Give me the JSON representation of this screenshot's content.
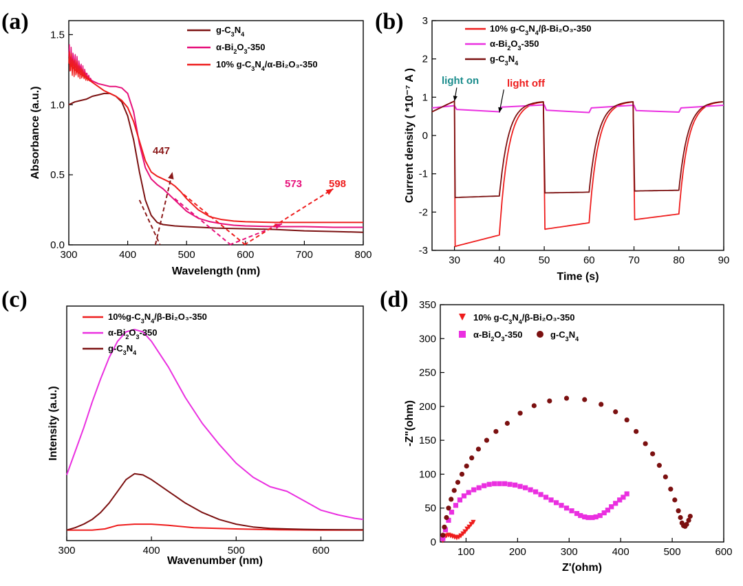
{
  "chart_data": [
    {
      "panel": "(a)",
      "type": "line",
      "xlabel": "Wavelength (nm)",
      "ylabel": "Absorbance (a.u.)",
      "xlim": [
        300,
        800
      ],
      "ylim": [
        0,
        1.6
      ],
      "xticks": [
        300,
        400,
        500,
        600,
        700,
        800
      ],
      "yticks": [
        0.0,
        0.5,
        1.0,
        1.5
      ],
      "ytick_labels": [
        "0.0",
        "0.5",
        "1.0",
        "1.5"
      ],
      "legend": [
        {
          "label": "g-C",
          "s1": "3",
          "mid": "N",
          "s2": "4",
          "tail": "",
          "color": "#7b1010"
        },
        {
          "label": "α-Bi",
          "s1": "2",
          "mid": "O",
          "s2": "3",
          "tail": "-350",
          "color": "#e6107a"
        },
        {
          "label": "10% g-C",
          "s1": "3",
          "mid": "N",
          "s2": "4",
          "tail": "/α-Bi₂O₃-350",
          "color": "#ee1c1c"
        }
      ],
      "series": [
        {
          "name": "g-C3N4",
          "color": "#7b1010",
          "x": [
            300,
            310,
            320,
            330,
            340,
            350,
            360,
            370,
            380,
            390,
            400,
            410,
            420,
            430,
            440,
            450,
            460,
            480,
            500,
            550,
            600,
            650,
            700,
            750,
            800
          ],
          "y": [
            1.0,
            1.02,
            1.03,
            1.04,
            1.06,
            1.07,
            1.08,
            1.08,
            1.06,
            1.02,
            0.92,
            0.75,
            0.52,
            0.32,
            0.21,
            0.16,
            0.145,
            0.135,
            0.13,
            0.12,
            0.115,
            0.11,
            0.1,
            0.095,
            0.09
          ]
        },
        {
          "name": "alpha-Bi2O3-350",
          "color": "#e6107a",
          "x": [
            300,
            310,
            320,
            330,
            340,
            350,
            360,
            370,
            380,
            390,
            400,
            410,
            420,
            430,
            440,
            450,
            460,
            470,
            480,
            500,
            520,
            540,
            560,
            580,
            600,
            650,
            700,
            750,
            800
          ],
          "y": [
            1.35,
            1.28,
            1.24,
            1.2,
            1.17,
            1.15,
            1.14,
            1.13,
            1.13,
            1.12,
            1.08,
            0.95,
            0.72,
            0.55,
            0.47,
            0.43,
            0.4,
            0.36,
            0.32,
            0.24,
            0.19,
            0.165,
            0.15,
            0.14,
            0.135,
            0.13,
            0.13,
            0.125,
            0.125
          ]
        },
        {
          "name": "10% g-C3N4/alpha-Bi2O3-350",
          "color": "#ee1c1c",
          "x": [
            300,
            310,
            320,
            330,
            340,
            350,
            360,
            370,
            380,
            390,
            400,
            410,
            420,
            430,
            440,
            450,
            460,
            470,
            480,
            490,
            500,
            520,
            540,
            560,
            580,
            600,
            650,
            700,
            750,
            800
          ],
          "y": [
            1.3,
            1.25,
            1.22,
            1.19,
            1.16,
            1.13,
            1.1,
            1.08,
            1.06,
            1.03,
            0.98,
            0.88,
            0.74,
            0.6,
            0.52,
            0.49,
            0.47,
            0.45,
            0.42,
            0.38,
            0.33,
            0.25,
            0.2,
            0.18,
            0.17,
            0.165,
            0.16,
            0.16,
            0.16,
            0.16
          ]
        }
      ],
      "annotations": [
        {
          "text": "447",
          "color": "#8b1a1a",
          "at": [
            447,
            0.0
          ],
          "to": [
            476,
            0.52
          ]
        },
        {
          "text": "573",
          "color": "#e6107a",
          "at": [
            573,
            0.0
          ],
          "to": [
            662,
            0.15
          ]
        },
        {
          "text": "598",
          "color": "#ee1c1c",
          "at": [
            598,
            0.0
          ],
          "to": [
            749,
            0.4
          ]
        }
      ]
    },
    {
      "panel": "(b)",
      "type": "line",
      "xlabel": "Time (s)",
      "ylabel": "Current density ( *10⁻⁷ A )",
      "xlim": [
        25,
        90
      ],
      "ylim": [
        -3,
        3
      ],
      "xticks": [
        30,
        40,
        50,
        60,
        70,
        80,
        90
      ],
      "yticks": [
        -3,
        -2,
        -1,
        0,
        1,
        2,
        3
      ],
      "legend": [
        {
          "label": "10% g-C",
          "s1": "3",
          "mid": "N",
          "s2": "4",
          "tail": "/β-Bi₂O₃-350",
          "color": "#ee1c1c"
        },
        {
          "label": "α-Bi",
          "s1": "2",
          "mid": "O",
          "s2": "3",
          "tail": "-350",
          "color": "#ea2fe0"
        },
        {
          "label": "g-C",
          "s1": "3",
          "mid": "N",
          "s2": "4",
          "tail": "",
          "color": "#7b1010"
        }
      ],
      "series": [
        {
          "name": "10% g-C3N4/beta-Bi2O3-350",
          "color": "#ee1c1c",
          "on_level": 0.9,
          "off_start": -2.9,
          "off_end": -2.6,
          "cycles": [
            [
              30,
              40
            ],
            [
              50,
              60
            ],
            [
              70,
              80
            ]
          ],
          "off_levels": [
            [
              -2.9,
              -2.6
            ],
            [
              -2.45,
              -2.28
            ],
            [
              -2.2,
              -2.05
            ]
          ]
        },
        {
          "name": "alpha-Bi2O3-350",
          "color": "#ea2fe0",
          "x": [
            25,
            30,
            30.5,
            40,
            40.5,
            50,
            50.5,
            60,
            60.5,
            70,
            70.5,
            80,
            80.5,
            90
          ],
          "y": [
            0.72,
            0.78,
            0.68,
            0.62,
            0.74,
            0.8,
            0.66,
            0.6,
            0.72,
            0.79,
            0.65,
            0.61,
            0.72,
            0.79
          ]
        },
        {
          "name": "g-C3N4",
          "color": "#7b1010",
          "on_level": 0.9,
          "cycles": [
            [
              30,
              40
            ],
            [
              50,
              60
            ],
            [
              70,
              80
            ]
          ],
          "off_levels": [
            [
              -1.62,
              -1.58
            ],
            [
              -1.5,
              -1.48
            ],
            [
              -1.45,
              -1.43
            ]
          ]
        }
      ],
      "annotations": [
        {
          "text": "light on",
          "color": "#1a8c8c",
          "at": [
            30,
            0.9
          ],
          "from": [
            30.5,
            1.25
          ]
        },
        {
          "text": "light off",
          "color": "#ee1c1c",
          "at": [
            40,
            0.6
          ],
          "from": [
            41,
            1.2
          ]
        }
      ]
    },
    {
      "panel": "(c)",
      "type": "line",
      "xlabel": "Wavenumber (nm)",
      "ylabel": "Intensity (a.u.)",
      "xlim": [
        300,
        650
      ],
      "ylim": [
        0,
        1.0
      ],
      "xticks": [
        300,
        400,
        500,
        600
      ],
      "legend": [
        {
          "label": "10%g-C",
          "s1": "3",
          "mid": "N",
          "s2": "4",
          "tail": "/β-Bi₂O₃-350",
          "color": "#ee1c1c"
        },
        {
          "label": "α-Bi",
          "s1": "2",
          "mid": "O",
          "s2": "3",
          "tail": "-350",
          "color": "#ea2fe0"
        },
        {
          "label": "g-C",
          "s1": "3",
          "mid": "N",
          "s2": "4",
          "tail": "",
          "color": "#7b1010"
        }
      ],
      "series": [
        {
          "name": "10%g-C3N4/beta-Bi2O3-350",
          "color": "#ee1c1c",
          "x": [
            300,
            330,
            345,
            360,
            380,
            400,
            420,
            450,
            500,
            550,
            600,
            650
          ],
          "y": [
            0.045,
            0.045,
            0.05,
            0.065,
            0.07,
            0.07,
            0.065,
            0.055,
            0.05,
            0.046,
            0.045,
            0.045
          ]
        },
        {
          "name": "alpha-Bi2O3-350",
          "color": "#ea2fe0",
          "x": [
            300,
            310,
            320,
            330,
            340,
            350,
            360,
            370,
            380,
            390,
            400,
            420,
            440,
            460,
            480,
            500,
            520,
            540,
            560,
            580,
            600,
            620,
            640,
            650
          ],
          "y": [
            0.28,
            0.38,
            0.48,
            0.59,
            0.69,
            0.78,
            0.85,
            0.89,
            0.9,
            0.89,
            0.85,
            0.74,
            0.61,
            0.5,
            0.41,
            0.33,
            0.27,
            0.23,
            0.21,
            0.17,
            0.13,
            0.11,
            0.095,
            0.09
          ]
        },
        {
          "name": "g-C3N4",
          "color": "#7b1010",
          "x": [
            300,
            310,
            320,
            330,
            340,
            350,
            360,
            370,
            380,
            390,
            400,
            420,
            440,
            460,
            480,
            500,
            520,
            540,
            560,
            580,
            600,
            650
          ],
          "y": [
            0.045,
            0.055,
            0.07,
            0.09,
            0.12,
            0.16,
            0.21,
            0.26,
            0.285,
            0.28,
            0.26,
            0.21,
            0.16,
            0.12,
            0.09,
            0.07,
            0.058,
            0.052,
            0.05,
            0.048,
            0.047,
            0.046
          ]
        }
      ]
    },
    {
      "panel": "(d)",
      "type": "scatter",
      "xlabel": "Z'(ohm)",
      "ylabel": "-Z\"(ohm)",
      "xlim": [
        50,
        600
      ],
      "ylim": [
        0,
        350
      ],
      "xticks": [
        100,
        200,
        300,
        400,
        500,
        600
      ],
      "yticks": [
        0,
        50,
        100,
        150,
        200,
        250,
        300,
        350
      ],
      "legend": [
        {
          "label": "10% g-C",
          "s1": "3",
          "mid": "N",
          "s2": "4",
          "tail": "/β-Bi₂O₃-350",
          "color": "#ee1c1c",
          "marker": "triangle"
        },
        {
          "label": "α-Bi",
          "s1": "2",
          "mid": "O",
          "s2": "3",
          "tail": "-350",
          "color": "#ea2fe0",
          "marker": "square"
        },
        {
          "label": "g-C",
          "s1": "3",
          "mid": "N",
          "s2": "4",
          "tail": "",
          "color": "#7b1010",
          "marker": "circle"
        }
      ],
      "series": [
        {
          "name": "10% g-C3N4/beta-Bi2O3-350",
          "color": "#ee1c1c",
          "marker": "triangle",
          "x": [
            55,
            58,
            62,
            66,
            70,
            74,
            78,
            82,
            86,
            90,
            94,
            98,
            102,
            106,
            110,
            114
          ],
          "y": [
            2,
            6,
            9,
            10,
            9,
            8,
            7,
            6,
            7,
            9,
            12,
            15,
            19,
            22,
            26,
            29
          ]
        },
        {
          "name": "alpha-Bi2O3-350",
          "color": "#ea2fe0",
          "marker": "square",
          "x": [
            55,
            60,
            66,
            72,
            80,
            88,
            96,
            105,
            115,
            125,
            135,
            145,
            155,
            165,
            175,
            185,
            195,
            205,
            215,
            225,
            235,
            245,
            255,
            265,
            275,
            285,
            295,
            305,
            315,
            322,
            330,
            337,
            345,
            352,
            360,
            368,
            375,
            382,
            390,
            398,
            405,
            412
          ],
          "y": [
            5,
            18,
            32,
            44,
            54,
            62,
            68,
            73,
            77,
            80,
            83,
            85,
            86,
            86,
            86,
            85,
            84,
            82,
            80,
            77,
            74,
            70,
            66,
            62,
            58,
            54,
            50,
            46,
            42,
            39,
            37,
            36,
            36,
            37,
            39,
            43,
            47,
            52,
            57,
            62,
            66,
            71
          ]
        },
        {
          "name": "g-C3N4",
          "color": "#7b1010",
          "marker": "circle",
          "x": [
            55,
            58,
            62,
            66,
            71,
            77,
            84,
            92,
            101,
            111,
            124,
            140,
            158,
            180,
            205,
            232,
            262,
            295,
            330,
            362,
            390,
            412,
            430,
            448,
            462,
            475,
            487,
            497,
            505,
            512,
            516,
            519,
            522,
            525,
            528,
            532,
            535
          ],
          "y": [
            10,
            22,
            36,
            50,
            63,
            76,
            88,
            100,
            112,
            124,
            137,
            150,
            163,
            175,
            190,
            201,
            208,
            212,
            210,
            203,
            192,
            180,
            163,
            145,
            130,
            113,
            96,
            78,
            62,
            46,
            36,
            28,
            24,
            23,
            26,
            32,
            38
          ]
        }
      ]
    }
  ]
}
